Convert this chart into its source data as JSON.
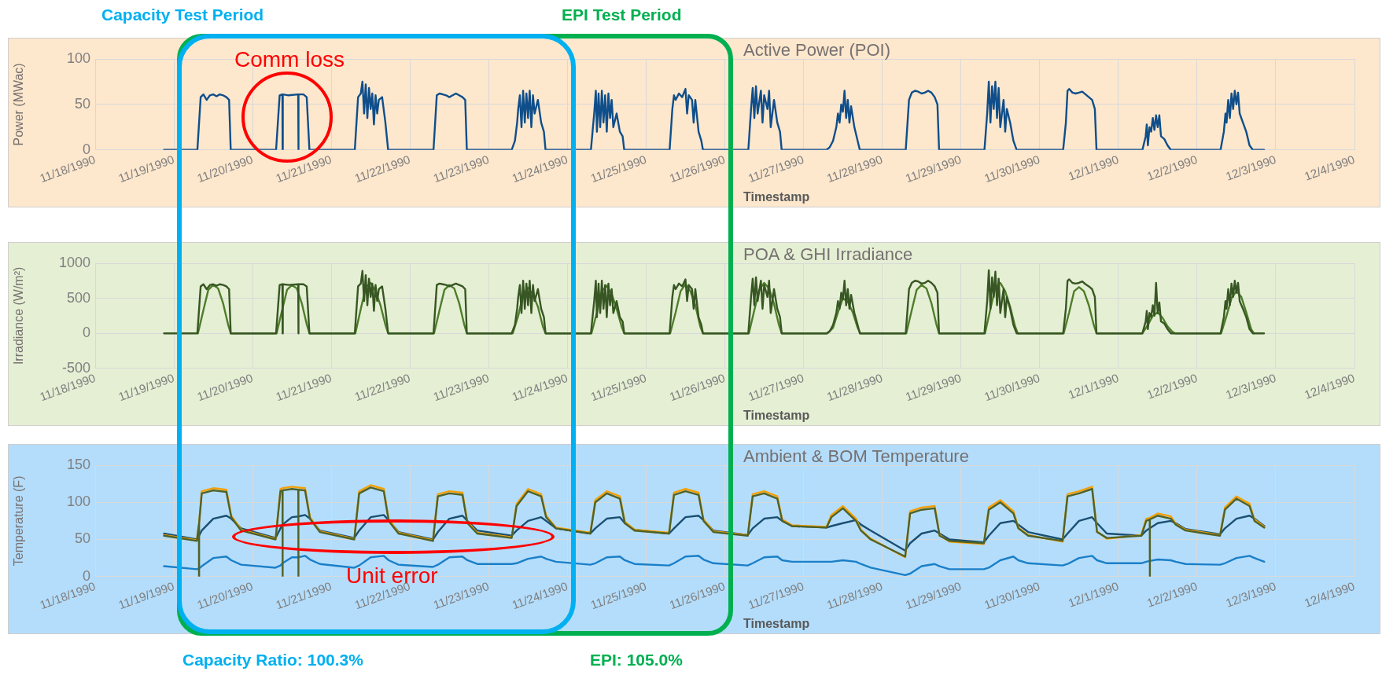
{
  "chart_data": [
    {
      "type": "line",
      "title": "Active Power (POI)",
      "xlabel": "Timestamp",
      "ylabel": "Power (MWac)",
      "marker": "none",
      "grid": true,
      "annotations": [
        "Capacity Test Period",
        "EPI Test Period",
        "Comm loss"
      ],
      "xlim": [
        "1990-11-18",
        "1990-12-04"
      ],
      "ylim": [
        0,
        100
      ],
      "yticks": [
        0,
        50,
        100
      ],
      "xticks": [
        {
          "value": "1990-11-18",
          "label": "11/18/1990"
        },
        {
          "value": "1990-11-19",
          "label": "11/19/1990"
        },
        {
          "value": "1990-11-20",
          "label": "11/20/1990"
        },
        {
          "value": "1990-11-21",
          "label": "11/21/1990"
        },
        {
          "value": "1990-11-22",
          "label": "11/22/1990"
        },
        {
          "value": "1990-11-23",
          "label": "11/23/1990"
        },
        {
          "value": "1990-11-24",
          "label": "11/24/1990"
        },
        {
          "value": "1990-11-25",
          "label": "11/25/1990"
        },
        {
          "value": "1990-11-26",
          "label": "11/26/1990"
        },
        {
          "value": "1990-11-27",
          "label": "11/27/1990"
        },
        {
          "value": "1990-11-28",
          "label": "11/28/1990"
        },
        {
          "value": "1990-11-29",
          "label": "11/29/1990"
        },
        {
          "value": "1990-11-30",
          "label": "11/30/1990"
        },
        {
          "value": "1990-12-01",
          "label": "12/1/1990"
        },
        {
          "value": "1990-12-02",
          "label": "12/2/1990"
        },
        {
          "value": "1990-12-03",
          "label": "12/3/1990"
        },
        {
          "value": "1990-12-04",
          "label": "12/4/1990"
        }
      ],
      "x": [
        "1990-11-18T21:00",
        "1990-11-19T07:10",
        "1990-11-19T08:10",
        "1990-11-19T09:00",
        "1990-11-19T10:00",
        "1990-11-19T11:00",
        "1990-11-19T12:00",
        "1990-11-19T13:00",
        "1990-11-19T14:00",
        "1990-11-19T15:00",
        "1990-11-19T16:00",
        "1990-11-19T16:50",
        "1990-11-19T17:20",
        "1990-11-20T07:10",
        "1990-11-20T08:15",
        "1990-11-20T09:05",
        "1990-11-20T09:09",
        "1990-11-20T09:13",
        "1990-11-20T11:00",
        "1990-11-20T13:54",
        "1990-11-20T13:58",
        "1990-11-20T14:02",
        "1990-11-20T15:30",
        "1990-11-20T16:30",
        "1990-11-20T17:20",
        "1990-11-21T07:10",
        "1990-11-21T08:10",
        "1990-11-21T09:00",
        "1990-11-21T09:30",
        "1990-11-21T10:00",
        "1990-11-21T10:30",
        "1990-11-21T11:00",
        "1990-11-21T11:30",
        "1990-11-21T12:00",
        "1990-11-21T12:30",
        "1990-11-21T13:00",
        "1990-11-21T13:30",
        "1990-11-21T14:00",
        "1990-11-21T14:30",
        "1990-11-21T15:30",
        "1990-11-21T16:30",
        "1990-11-21T17:20",
        "1990-11-22T07:10",
        "1990-11-22T08:10",
        "1990-11-22T09:00",
        "1990-11-22T10:00",
        "1990-11-22T11:00",
        "1990-11-22T12:00",
        "1990-11-22T13:00",
        "1990-11-22T14:00",
        "1990-11-22T15:00",
        "1990-11-22T16:00",
        "1990-11-22T16:50",
        "1990-11-22T17:20",
        "1990-11-23T07:00",
        "1990-11-23T08:00",
        "1990-11-23T08:40",
        "1990-11-23T09:00",
        "1990-11-23T09:30",
        "1990-11-23T10:00",
        "1990-11-23T10:30",
        "1990-11-23T11:00",
        "1990-11-23T11:30",
        "1990-11-23T12:00",
        "1990-11-23T12:30",
        "1990-11-23T13:00",
        "1990-11-23T13:30",
        "1990-11-23T14:00",
        "1990-11-23T15:00",
        "1990-11-23T16:00",
        "1990-11-23T16:50",
        "1990-11-23T17:20",
        "1990-11-24T07:10",
        "1990-11-24T08:10",
        "1990-11-24T08:40",
        "1990-11-24T09:00",
        "1990-11-24T09:30",
        "1990-11-24T10:00",
        "1990-11-24T10:30",
        "1990-11-24T11:00",
        "1990-11-24T11:30",
        "1990-11-24T12:00",
        "1990-11-24T12:30",
        "1990-11-24T13:00",
        "1990-11-24T13:30",
        "1990-11-24T14:00",
        "1990-11-24T15:00",
        "1990-11-24T16:00",
        "1990-11-24T16:50",
        "1990-11-24T17:20",
        "1990-11-25T07:10",
        "1990-11-25T08:00",
        "1990-11-25T08:30",
        "1990-11-25T09:00",
        "1990-11-25T10:00",
        "1990-11-25T11:00",
        "1990-11-25T12:00",
        "1990-11-25T12:30",
        "1990-11-25T13:00",
        "1990-11-25T14:00",
        "1990-11-25T14:30",
        "1990-11-25T15:00",
        "1990-11-25T16:00",
        "1990-11-25T16:50",
        "1990-11-25T17:20",
        "1990-11-26T07:10",
        "1990-11-26T08:00",
        "1990-11-26T08:30",
        "1990-11-26T09:00",
        "1990-11-26T09:30",
        "1990-11-26T10:00",
        "1990-11-26T11:00",
        "1990-11-26T11:30",
        "1990-11-26T12:00",
        "1990-11-26T13:00",
        "1990-11-26T13:30",
        "1990-11-26T14:00",
        "1990-11-26T15:00",
        "1990-11-26T16:00",
        "1990-11-26T16:50",
        "1990-11-26T17:20",
        "1990-11-27T07:00",
        "1990-11-27T08:00",
        "1990-11-27T09:00",
        "1990-11-27T10:00",
        "1990-11-27T10:30",
        "1990-11-27T11:00",
        "1990-11-27T11:30",
        "1990-11-27T12:00",
        "1990-11-27T12:30",
        "1990-11-27T13:00",
        "1990-11-27T13:30",
        "1990-11-27T14:00",
        "1990-11-27T14:30",
        "1990-11-27T15:30",
        "1990-11-27T16:30",
        "1990-11-27T17:10",
        "1990-11-28T07:10",
        "1990-11-28T08:10",
        "1990-11-28T09:00",
        "1990-11-28T10:00",
        "1990-11-28T11:00",
        "1990-11-28T12:00",
        "1990-11-28T13:00",
        "1990-11-28T14:00",
        "1990-11-28T15:00",
        "1990-11-28T16:00",
        "1990-11-28T16:50",
        "1990-11-28T17:20",
        "1990-11-29T07:10",
        "1990-11-29T08:00",
        "1990-11-29T08:30",
        "1990-11-29T09:00",
        "1990-11-29T09:30",
        "1990-11-29T10:00",
        "1990-11-29T10:30",
        "1990-11-29T11:00",
        "1990-11-29T11:30",
        "1990-11-29T12:00",
        "1990-11-29T13:00",
        "1990-11-29T13:30",
        "1990-11-29T14:00",
        "1990-11-29T15:00",
        "1990-11-29T16:00",
        "1990-11-29T17:00",
        "1990-11-30T07:10",
        "1990-11-30T08:00",
        "1990-11-30T08:30",
        "1990-11-30T09:00",
        "1990-11-30T10:00",
        "1990-11-30T11:00",
        "1990-11-30T12:00",
        "1990-11-30T13:00",
        "1990-11-30T14:00",
        "1990-11-30T15:00",
        "1990-11-30T16:00",
        "1990-11-30T16:50",
        "1990-11-30T17:20",
        "1990-12-01T07:20",
        "1990-12-01T08:20",
        "1990-12-01T08:40",
        "1990-12-01T09:00",
        "1990-12-01T09:30",
        "1990-12-01T10:00",
        "1990-12-01T10:30",
        "1990-12-01T11:00",
        "1990-12-01T11:30",
        "1990-12-01T12:00",
        "1990-12-01T12:30",
        "1990-12-01T13:00",
        "1990-12-01T14:00",
        "1990-12-01T15:00",
        "1990-12-01T16:00",
        "1990-12-02T07:10",
        "1990-12-02T08:10",
        "1990-12-02T08:40",
        "1990-12-02T09:00",
        "1990-12-02T09:30",
        "1990-12-02T10:00",
        "1990-12-02T10:30",
        "1990-12-02T11:00",
        "1990-12-02T11:30",
        "1990-12-02T12:00",
        "1990-12-02T12:30",
        "1990-12-02T13:00",
        "1990-12-02T14:00",
        "1990-12-02T15:00",
        "1990-12-02T16:00",
        "1990-12-02T17:00",
        "1990-12-02T20:25"
      ],
      "series": [
        {
          "color": "#0f4e8a",
          "values": [
            0,
            0,
            58,
            61,
            55,
            60,
            61,
            59,
            61,
            60,
            58,
            55,
            0,
            0,
            60,
            61,
            0,
            61,
            60,
            61,
            0,
            61,
            61,
            58,
            0,
            0,
            58,
            62,
            75,
            40,
            72,
            35,
            68,
            45,
            62,
            28,
            60,
            40,
            55,
            58,
            30,
            0,
            0,
            60,
            62,
            61,
            60,
            58,
            60,
            62,
            60,
            58,
            55,
            0,
            0,
            10,
            30,
            45,
            60,
            25,
            65,
            30,
            62,
            35,
            65,
            25,
            60,
            40,
            55,
            30,
            20,
            0,
            0,
            40,
            65,
            20,
            62,
            25,
            65,
            30,
            60,
            20,
            62,
            35,
            55,
            25,
            40,
            20,
            15,
            0,
            0,
            45,
            60,
            55,
            62,
            58,
            67,
            40,
            60,
            55,
            30,
            55,
            20,
            10,
            0,
            0,
            45,
            68,
            35,
            70,
            40,
            65,
            30,
            60,
            45,
            65,
            25,
            55,
            30,
            20,
            0,
            0,
            3,
            10,
            25,
            40,
            30,
            50,
            42,
            65,
            35,
            55,
            30,
            48,
            25,
            10,
            0,
            0,
            55,
            63,
            65,
            64,
            62,
            63,
            65,
            63,
            58,
            50,
            0,
            0,
            40,
            75,
            30,
            70,
            45,
            75,
            35,
            68,
            25,
            55,
            20,
            45,
            30,
            10,
            0,
            0,
            30,
            65,
            67,
            63,
            62,
            63,
            64,
            61,
            58,
            55,
            45,
            0,
            0,
            15,
            28,
            5,
            25,
            20,
            35,
            22,
            38,
            25,
            38,
            15,
            12,
            5,
            0,
            0,
            20,
            40,
            30,
            55,
            35,
            62,
            45,
            65,
            50,
            63,
            40,
            30,
            20,
            5,
            0,
            0
          ]
        }
      ]
    },
    {
      "type": "line",
      "title": "POA & GHI Irradiance",
      "xlabel": "Timestamp",
      "ylabel": "Irradiance (W/m²)",
      "marker": "none",
      "grid": true,
      "xlim": [
        "1990-11-18",
        "1990-12-04"
      ],
      "ylim": [
        -500,
        1000
      ],
      "yticks": [
        -500,
        0,
        500,
        1000
      ],
      "xticks": [
        {
          "value": "1990-11-18",
          "label": "11/18/1990"
        },
        {
          "value": "1990-11-19",
          "label": "11/19/1990"
        },
        {
          "value": "1990-11-20",
          "label": "11/20/1990"
        },
        {
          "value": "1990-11-21",
          "label": "11/21/1990"
        },
        {
          "value": "1990-11-22",
          "label": "11/22/1990"
        },
        {
          "value": "1990-11-23",
          "label": "11/23/1990"
        },
        {
          "value": "1990-11-24",
          "label": "11/24/1990"
        },
        {
          "value": "1990-11-25",
          "label": "11/25/1990"
        },
        {
          "value": "1990-11-26",
          "label": "11/26/1990"
        },
        {
          "value": "1990-11-27",
          "label": "11/27/1990"
        },
        {
          "value": "1990-11-28",
          "label": "11/28/1990"
        },
        {
          "value": "1990-11-29",
          "label": "11/29/1990"
        },
        {
          "value": "1990-11-30",
          "label": "11/30/1990"
        },
        {
          "value": "1990-12-01",
          "label": "12/1/1990"
        },
        {
          "value": "1990-12-02",
          "label": "12/2/1990"
        },
        {
          "value": "1990-12-03",
          "label": "12/3/1990"
        },
        {
          "value": "1990-12-04",
          "label": "12/4/1990"
        }
      ],
      "x": [
        "1990-11-18T21:00",
        "1990-11-19T07:10",
        "1990-11-19T08:10",
        "1990-11-19T09:00",
        "1990-11-19T10:00",
        "1990-11-19T11:00",
        "1990-11-19T12:00",
        "1990-11-19T13:00",
        "1990-11-19T14:00",
        "1990-11-19T15:00",
        "1990-11-19T16:00",
        "1990-11-19T16:50",
        "1990-11-19T17:20",
        "1990-11-20T07:10",
        "1990-11-20T08:15",
        "1990-11-20T09:05",
        "1990-11-20T09:09",
        "1990-11-20T09:13",
        "1990-11-20T11:00",
        "1990-11-20T13:54",
        "1990-11-20T13:58",
        "1990-11-20T14:02",
        "1990-11-20T15:30",
        "1990-11-20T16:30",
        "1990-11-20T17:20",
        "1990-11-21T07:10",
        "1990-11-21T08:10",
        "1990-11-21T09:00",
        "1990-11-21T09:30",
        "1990-11-21T10:00",
        "1990-11-21T10:30",
        "1990-11-21T11:00",
        "1990-11-21T11:30",
        "1990-11-21T12:00",
        "1990-11-21T12:30",
        "1990-11-21T13:00",
        "1990-11-21T13:30",
        "1990-11-21T14:00",
        "1990-11-21T14:30",
        "1990-11-21T15:30",
        "1990-11-21T16:30",
        "1990-11-21T17:20",
        "1990-11-22T07:10",
        "1990-11-22T08:10",
        "1990-11-22T09:00",
        "1990-11-22T10:00",
        "1990-11-22T11:00",
        "1990-11-22T12:00",
        "1990-11-22T13:00",
        "1990-11-22T14:00",
        "1990-11-22T15:00",
        "1990-11-22T16:00",
        "1990-11-22T16:50",
        "1990-11-22T17:20",
        "1990-11-23T07:00",
        "1990-11-23T08:00",
        "1990-11-23T08:40",
        "1990-11-23T09:00",
        "1990-11-23T09:30",
        "1990-11-23T10:00",
        "1990-11-23T10:30",
        "1990-11-23T11:00",
        "1990-11-23T11:30",
        "1990-11-23T12:00",
        "1990-11-23T12:30",
        "1990-11-23T13:00",
        "1990-11-23T13:30",
        "1990-11-23T14:00",
        "1990-11-23T15:00",
        "1990-11-23T16:00",
        "1990-11-23T16:50",
        "1990-11-23T17:20",
        "1990-11-24T07:10",
        "1990-11-24T08:10",
        "1990-11-24T08:40",
        "1990-11-24T09:00",
        "1990-11-24T09:30",
        "1990-11-24T10:00",
        "1990-11-24T10:30",
        "1990-11-24T11:00",
        "1990-11-24T11:30",
        "1990-11-24T12:00",
        "1990-11-24T12:30",
        "1990-11-24T13:00",
        "1990-11-24T13:30",
        "1990-11-24T14:00",
        "1990-11-24T15:00",
        "1990-11-24T16:00",
        "1990-11-24T16:50",
        "1990-11-24T17:20",
        "1990-11-25T07:10",
        "1990-11-25T08:00",
        "1990-11-25T08:30",
        "1990-11-25T09:00",
        "1990-11-25T10:00",
        "1990-11-25T11:00",
        "1990-11-25T12:00",
        "1990-11-25T12:30",
        "1990-11-25T13:00",
        "1990-11-25T14:00",
        "1990-11-25T14:30",
        "1990-11-25T15:00",
        "1990-11-25T16:00",
        "1990-11-25T16:50",
        "1990-11-25T17:20",
        "1990-11-26T07:10",
        "1990-11-26T08:00",
        "1990-11-26T08:30",
        "1990-11-26T09:00",
        "1990-11-26T09:30",
        "1990-11-26T10:00",
        "1990-11-26T11:00",
        "1990-11-26T11:30",
        "1990-11-26T12:00",
        "1990-11-26T13:00",
        "1990-11-26T13:30",
        "1990-11-26T14:00",
        "1990-11-26T15:00",
        "1990-11-26T16:00",
        "1990-11-26T16:50",
        "1990-11-26T17:20",
        "1990-11-27T07:00",
        "1990-11-27T08:00",
        "1990-11-27T09:00",
        "1990-11-27T10:00",
        "1990-11-27T10:30",
        "1990-11-27T11:00",
        "1990-11-27T11:30",
        "1990-11-27T12:00",
        "1990-11-27T12:30",
        "1990-11-27T13:00",
        "1990-11-27T13:30",
        "1990-11-27T14:00",
        "1990-11-27T14:30",
        "1990-11-27T15:30",
        "1990-11-27T16:30",
        "1990-11-27T17:10",
        "1990-11-28T07:10",
        "1990-11-28T08:10",
        "1990-11-28T09:00",
        "1990-11-28T10:00",
        "1990-11-28T11:00",
        "1990-11-28T12:00",
        "1990-11-28T13:00",
        "1990-11-28T14:00",
        "1990-11-28T15:00",
        "1990-11-28T16:00",
        "1990-11-28T16:50",
        "1990-11-28T17:20",
        "1990-11-29T07:10",
        "1990-11-29T08:00",
        "1990-11-29T08:30",
        "1990-11-29T09:00",
        "1990-11-29T09:30",
        "1990-11-29T10:00",
        "1990-11-29T10:30",
        "1990-11-29T11:00",
        "1990-11-29T11:30",
        "1990-11-29T12:00",
        "1990-11-29T13:00",
        "1990-11-29T13:30",
        "1990-11-29T14:00",
        "1990-11-29T15:00",
        "1990-11-29T16:00",
        "1990-11-29T17:00",
        "1990-11-30T07:10",
        "1990-11-30T08:00",
        "1990-11-30T08:30",
        "1990-11-30T09:00",
        "1990-11-30T10:00",
        "1990-11-30T11:00",
        "1990-11-30T12:00",
        "1990-11-30T13:00",
        "1990-11-30T14:00",
        "1990-11-30T15:00",
        "1990-11-30T16:00",
        "1990-11-30T16:50",
        "1990-11-30T17:20",
        "1990-12-01T07:20",
        "1990-12-01T08:20",
        "1990-12-01T08:40",
        "1990-12-01T09:00",
        "1990-12-01T09:30",
        "1990-12-01T10:00",
        "1990-12-01T10:30",
        "1990-12-01T11:00",
        "1990-12-01T11:30",
        "1990-12-01T12:00",
        "1990-12-01T12:30",
        "1990-12-01T13:00",
        "1990-12-01T14:00",
        "1990-12-01T15:00",
        "1990-12-01T16:00",
        "1990-12-02T07:10",
        "1990-12-02T08:10",
        "1990-12-02T08:40",
        "1990-12-02T09:00",
        "1990-12-02T09:30",
        "1990-12-02T10:00",
        "1990-12-02T10:30",
        "1990-12-02T11:00",
        "1990-12-02T11:30",
        "1990-12-02T12:00",
        "1990-12-02T12:30",
        "1990-12-02T13:00",
        "1990-12-02T14:00",
        "1990-12-02T15:00",
        "1990-12-02T16:00",
        "1990-12-02T17:00",
        "1990-12-02T20:25"
      ],
      "series": [
        {
          "color": "#4e7d2a",
          "x": [
            "1990-11-19T07:20",
            "1990-11-19T09:00",
            "1990-11-19T10:30",
            "1990-11-19T12:00",
            "1990-11-19T13:30",
            "1990-11-19T15:00",
            "1990-11-19T16:30",
            "1990-11-19T17:20",
            "1990-11-20T07:20",
            "1990-11-20T09:00",
            "1990-11-20T10:30",
            "1990-11-20T12:00",
            "1990-11-20T13:30",
            "1990-11-20T15:00",
            "1990-11-20T16:30",
            "1990-11-20T17:20",
            "1990-11-21T07:20",
            "1990-11-21T09:00",
            "1990-11-21T10:30",
            "1990-11-21T12:00",
            "1990-11-21T13:30",
            "1990-11-21T15:00",
            "1990-11-21T16:30",
            "1990-11-21T17:20",
            "1990-11-22T07:20",
            "1990-11-22T09:00",
            "1990-11-22T10:30",
            "1990-11-22T12:00",
            "1990-11-22T13:30",
            "1990-11-22T15:00",
            "1990-11-22T16:30",
            "1990-11-22T17:20",
            "1990-11-23T07:20",
            "1990-11-23T09:00",
            "1990-11-23T10:30",
            "1990-11-23T12:00",
            "1990-11-23T13:30",
            "1990-11-23T15:00",
            "1990-11-23T16:30",
            "1990-11-23T17:20",
            "1990-11-24T07:20",
            "1990-11-24T09:00",
            "1990-11-24T10:30",
            "1990-11-24T12:00",
            "1990-11-24T13:30",
            "1990-11-24T15:00",
            "1990-11-24T16:30",
            "1990-11-24T17:20",
            "1990-11-25T07:20",
            "1990-11-25T09:00",
            "1990-11-25T10:30",
            "1990-11-25T12:00",
            "1990-11-25T13:30",
            "1990-11-25T15:00",
            "1990-11-25T16:30",
            "1990-11-25T17:20",
            "1990-11-26T07:20",
            "1990-11-26T09:00",
            "1990-11-26T10:30",
            "1990-11-26T12:00",
            "1990-11-26T13:30",
            "1990-11-26T15:00",
            "1990-11-26T16:30",
            "1990-11-26T17:20",
            "1990-11-27T07:20",
            "1990-11-27T09:00",
            "1990-11-27T10:30",
            "1990-11-27T12:00",
            "1990-11-27T13:30",
            "1990-11-27T15:00",
            "1990-11-27T16:30",
            "1990-11-27T17:20",
            "1990-11-28T07:20",
            "1990-11-28T09:00",
            "1990-11-28T10:30",
            "1990-11-28T12:00",
            "1990-11-28T13:30",
            "1990-11-28T15:00",
            "1990-11-28T16:30",
            "1990-11-28T17:20",
            "1990-11-29T07:20",
            "1990-11-29T09:00",
            "1990-11-29T10:30",
            "1990-11-29T12:00",
            "1990-11-29T13:30",
            "1990-11-29T15:00",
            "1990-11-29T16:30",
            "1990-11-29T17:20",
            "1990-11-30T07:20",
            "1990-11-30T09:00",
            "1990-11-30T10:30",
            "1990-11-30T12:00",
            "1990-11-30T13:30",
            "1990-11-30T15:00",
            "1990-11-30T16:30",
            "1990-11-30T17:20",
            "1990-12-01T07:20",
            "1990-12-01T09:00",
            "1990-12-01T10:30",
            "1990-12-01T12:00",
            "1990-12-01T13:30",
            "1990-12-01T15:00",
            "1990-12-01T16:30",
            "1990-12-01T17:20",
            "1990-12-02T07:20",
            "1990-12-02T09:00",
            "1990-12-02T10:30",
            "1990-12-02T12:00",
            "1990-12-02T13:30",
            "1990-12-02T15:00",
            "1990-12-02T16:30",
            "1990-12-02T17:20"
          ],
          "values": [
            0,
            330,
            620,
            690,
            640,
            430,
            130,
            0,
            0,
            330,
            620,
            690,
            640,
            430,
            130,
            0,
            0,
            350,
            650,
            720,
            600,
            400,
            120,
            0,
            0,
            330,
            620,
            690,
            640,
            430,
            130,
            0,
            0,
            250,
            550,
            650,
            550,
            380,
            100,
            0,
            0,
            300,
            600,
            680,
            560,
            350,
            100,
            0,
            0,
            300,
            600,
            700,
            600,
            400,
            100,
            0,
            0,
            330,
            620,
            720,
            640,
            420,
            120,
            0,
            0,
            80,
            300,
            500,
            450,
            300,
            80,
            0,
            0,
            330,
            620,
            690,
            640,
            430,
            130,
            0,
            0,
            350,
            650,
            720,
            600,
            380,
            100,
            0,
            0,
            300,
            600,
            660,
            600,
            400,
            120,
            0,
            0,
            120,
            250,
            300,
            220,
            100,
            20,
            0,
            0,
            250,
            500,
            600,
            520,
            300,
            60,
            0
          ]
        },
        {
          "color": "#375623",
          "values": [
            0,
            0,
            670,
            700,
            630,
            690,
            700,
            680,
            700,
            690,
            670,
            630,
            0,
            0,
            690,
            700,
            0,
            700,
            690,
            700,
            0,
            700,
            700,
            670,
            0,
            0,
            670,
            710,
            890,
            460,
            830,
            400,
            780,
            520,
            710,
            320,
            690,
            460,
            630,
            670,
            350,
            0,
            0,
            690,
            710,
            700,
            690,
            670,
            690,
            710,
            690,
            670,
            630,
            0,
            0,
            120,
            350,
            520,
            690,
            290,
            750,
            350,
            710,
            400,
            750,
            290,
            690,
            460,
            630,
            350,
            230,
            0,
            0,
            460,
            750,
            230,
            710,
            290,
            750,
            350,
            690,
            230,
            710,
            400,
            630,
            290,
            460,
            230,
            170,
            0,
            0,
            520,
            690,
            630,
            710,
            670,
            770,
            460,
            690,
            630,
            350,
            630,
            230,
            120,
            0,
            0,
            520,
            780,
            400,
            800,
            460,
            750,
            350,
            690,
            520,
            750,
            290,
            630,
            350,
            230,
            0,
            0,
            30,
            120,
            290,
            460,
            350,
            580,
            480,
            750,
            400,
            630,
            350,
            550,
            290,
            120,
            0,
            0,
            630,
            720,
            750,
            740,
            710,
            720,
            750,
            720,
            670,
            580,
            0,
            0,
            460,
            900,
            350,
            800,
            520,
            880,
            400,
            780,
            290,
            630,
            230,
            520,
            350,
            120,
            0,
            0,
            350,
            750,
            770,
            720,
            710,
            720,
            740,
            700,
            670,
            630,
            520,
            0,
            0,
            170,
            320,
            60,
            290,
            230,
            400,
            250,
            720,
            290,
            440,
            170,
            140,
            60,
            0,
            0,
            230,
            460,
            350,
            630,
            400,
            710,
            520,
            750,
            580,
            720,
            460,
            350,
            230,
            60,
            0,
            0
          ]
        }
      ]
    },
    {
      "type": "line",
      "title": "Ambient & BOM Temperature",
      "xlabel": "Timestamp",
      "ylabel": "Temperature (F)",
      "marker": "none",
      "grid": true,
      "annotations": [
        "Unit error",
        "Capacity Ratio: 100.3%",
        "EPI: 105.0%"
      ],
      "xlim": [
        "1990-11-18",
        "1990-12-04"
      ],
      "ylim": [
        0,
        150
      ],
      "yticks": [
        0,
        50,
        100,
        150
      ],
      "xticks": [
        {
          "value": "1990-11-18",
          "label": "11/18/1990"
        },
        {
          "value": "1990-11-19",
          "label": "11/19/1990"
        },
        {
          "value": "1990-11-20",
          "label": "11/20/1990"
        },
        {
          "value": "1990-11-21",
          "label": "11/21/1990"
        },
        {
          "value": "1990-11-22",
          "label": "11/22/1990"
        },
        {
          "value": "1990-11-23",
          "label": "11/23/1990"
        },
        {
          "value": "1990-11-24",
          "label": "11/24/1990"
        },
        {
          "value": "1990-11-25",
          "label": "11/25/1990"
        },
        {
          "value": "1990-11-26",
          "label": "11/26/1990"
        },
        {
          "value": "1990-11-27",
          "label": "11/27/1990"
        },
        {
          "value": "1990-11-28",
          "label": "11/28/1990"
        },
        {
          "value": "1990-11-29",
          "label": "11/29/1990"
        },
        {
          "value": "1990-11-30",
          "label": "11/30/1990"
        },
        {
          "value": "1990-12-01",
          "label": "12/1/1990"
        },
        {
          "value": "1990-12-02",
          "label": "12/2/1990"
        },
        {
          "value": "1990-12-03",
          "label": "12/3/1990"
        },
        {
          "value": "1990-12-04",
          "label": "12/4/1990"
        }
      ],
      "x": [
        "1990-11-18T21:00",
        "1990-11-19T07:00",
        "1990-11-19T07:38",
        "1990-11-19T07:40",
        "1990-11-19T07:42",
        "1990-11-19T08:30",
        "1990-11-19T12:00",
        "1990-11-19T16:00",
        "1990-11-19T17:30",
        "1990-11-19T20:30",
        "1990-11-20T07:00",
        "1990-11-20T08:30",
        "1990-11-20T09:07",
        "1990-11-20T09:09",
        "1990-11-20T09:11",
        "1990-11-20T12:00",
        "1990-11-20T13:56",
        "1990-11-20T13:58",
        "1990-11-20T14:00",
        "1990-11-20T16:00",
        "1990-11-20T17:30",
        "1990-11-20T20:30",
        "1990-11-21T07:00",
        "1990-11-21T08:30",
        "1990-11-21T12:00",
        "1990-11-21T16:00",
        "1990-11-21T17:30",
        "1990-11-21T20:30",
        "1990-11-22T07:00",
        "1990-11-22T08:30",
        "1990-11-22T12:00",
        "1990-11-22T16:00",
        "1990-11-22T17:30",
        "1990-11-22T20:30",
        "1990-11-23T07:00",
        "1990-11-23T08:30",
        "1990-11-23T12:00",
        "1990-11-23T16:00",
        "1990-11-23T17:30",
        "1990-11-23T20:30",
        "1990-11-24T07:00",
        "1990-11-24T08:30",
        "1990-11-24T12:00",
        "1990-11-24T16:00",
        "1990-11-24T17:30",
        "1990-11-24T20:30",
        "1990-11-25T07:00",
        "1990-11-25T08:30",
        "1990-11-25T12:00",
        "1990-11-25T16:00",
        "1990-11-25T17:30",
        "1990-11-25T20:30",
        "1990-11-26T07:00",
        "1990-11-26T08:30",
        "1990-11-26T12:00",
        "1990-11-26T16:00",
        "1990-11-26T17:30",
        "1990-11-26T20:30",
        "1990-11-27T07:00",
        "1990-11-27T08:30",
        "1990-11-27T12:00",
        "1990-11-27T16:00",
        "1990-11-27T17:30",
        "1990-11-27T20:30",
        "1990-11-28T07:00",
        "1990-11-28T08:30",
        "1990-11-28T12:00",
        "1990-11-28T16:00",
        "1990-11-28T17:30",
        "1990-11-28T20:30",
        "1990-11-29T07:00",
        "1990-11-29T08:30",
        "1990-11-29T12:00",
        "1990-11-29T16:00",
        "1990-11-29T17:30",
        "1990-11-29T20:30",
        "1990-11-30T07:00",
        "1990-11-30T08:30",
        "1990-11-30T12:00",
        "1990-11-30T16:00",
        "1990-11-30T17:30",
        "1990-11-30T20:30",
        "1990-12-01T07:00",
        "1990-12-01T08:30",
        "1990-12-01T09:34",
        "1990-12-01T09:36",
        "1990-12-01T09:38",
        "1990-12-01T12:00",
        "1990-12-01T16:00",
        "1990-12-01T17:30",
        "1990-12-01T20:30",
        "1990-12-02T07:00",
        "1990-12-02T08:30",
        "1990-12-02T12:00",
        "1990-12-02T16:00",
        "1990-12-02T17:30",
        "1990-12-02T20:30"
      ],
      "series": [
        {
          "color": "#1a7fc8",
          "values": [
            14,
            10,
            11,
            11,
            11,
            14,
            25,
            27,
            22,
            16,
            12,
            15,
            18,
            18,
            18,
            26,
            26,
            26,
            26,
            28,
            23,
            17,
            12,
            15,
            26,
            28,
            22,
            16,
            13,
            16,
            26,
            27,
            22,
            17,
            17,
            18,
            24,
            27,
            24,
            20,
            16,
            18,
            26,
            27,
            22,
            17,
            15,
            18,
            27,
            28,
            23,
            18,
            15,
            18,
            26,
            27,
            22,
            20,
            20,
            20,
            22,
            20,
            17,
            12,
            2,
            4,
            14,
            17,
            14,
            10,
            10,
            12,
            22,
            27,
            22,
            18,
            15,
            17,
            25,
            28,
            22,
            18,
            18,
            20,
            21,
            21,
            21,
            23,
            22,
            20,
            17,
            16,
            18,
            25,
            28,
            25,
            20
          ]
        },
        {
          "color": "#1b4f72",
          "values": [
            58,
            50,
            55,
            55,
            55,
            62,
            78,
            82,
            78,
            65,
            52,
            65,
            70,
            70,
            70,
            80,
            81,
            81,
            81,
            83,
            78,
            62,
            52,
            62,
            80,
            83,
            76,
            60,
            50,
            60,
            78,
            82,
            75,
            62,
            55,
            62,
            75,
            80,
            75,
            65,
            58,
            65,
            78,
            80,
            72,
            63,
            58,
            65,
            80,
            82,
            76,
            62,
            56,
            65,
            78,
            80,
            75,
            68,
            66,
            68,
            72,
            76,
            70,
            62,
            35,
            45,
            58,
            62,
            58,
            50,
            46,
            55,
            72,
            75,
            70,
            60,
            50,
            58,
            75,
            80,
            72,
            58,
            55,
            62,
            65,
            65,
            65,
            72,
            75,
            72,
            64,
            57,
            65,
            78,
            82,
            78,
            68
          ]
        },
        {
          "color": "#f5a000",
          "values": [
            56,
            49,
            72,
            72,
            74,
            115,
            119,
            117,
            82,
            63,
            51,
            118,
            119,
            119,
            119,
            121,
            120,
            120,
            120,
            119,
            80,
            61,
            51,
            115,
            123,
            118,
            77,
            59,
            49,
            111,
            115,
            113,
            74,
            59,
            53,
            98,
            118,
            111,
            82,
            66,
            59,
            103,
            115,
            108,
            74,
            63,
            59,
            113,
            118,
            113,
            77,
            61,
            56,
            111,
            115,
            108,
            77,
            69,
            67,
            83,
            95,
            78,
            63,
            51,
            26,
            88,
            93,
            95,
            56,
            47,
            44,
            93,
            103,
            88,
            66,
            56,
            47,
            111,
            115,
            121,
            61,
            51,
            56,
            78,
            79,
            79,
            79,
            85,
            81,
            71,
            63,
            56,
            93,
            108,
            98,
            77,
            67
          ]
        },
        {
          "color": "#4f6228",
          "values": [
            55,
            48,
            70,
            0,
            72,
            112,
            116,
            114,
            80,
            62,
            50,
            115,
            116,
            0,
            116,
            118,
            117,
            0,
            117,
            116,
            78,
            60,
            50,
            112,
            120,
            115,
            75,
            58,
            48,
            108,
            112,
            110,
            72,
            58,
            52,
            95,
            115,
            108,
            80,
            65,
            58,
            100,
            112,
            105,
            72,
            62,
            58,
            110,
            115,
            110,
            75,
            60,
            55,
            108,
            112,
            105,
            75,
            68,
            66,
            80,
            92,
            75,
            62,
            50,
            27,
            85,
            90,
            92,
            55,
            48,
            45,
            90,
            100,
            85,
            65,
            55,
            48,
            108,
            112,
            118,
            60,
            52,
            55,
            75,
            77,
            0,
            77,
            82,
            78,
            70,
            62,
            55,
            90,
            105,
            95,
            75,
            66
          ]
        }
      ]
    }
  ]
}
